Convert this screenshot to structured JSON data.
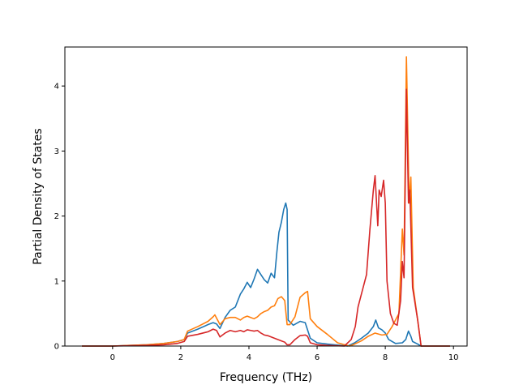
{
  "chart_data": {
    "type": "line",
    "title": "",
    "xlabel": "Frequency (THz)",
    "ylabel": "Partial Density of States",
    "xlim": [
      -1.4,
      10.4
    ],
    "ylim": [
      0,
      4.6
    ],
    "xticks": [
      0,
      2,
      4,
      6,
      8,
      10
    ],
    "yticks": [
      0,
      1,
      2,
      3,
      4
    ],
    "grid": false,
    "legend": "none",
    "series": [
      {
        "color": "#1f77b4",
        "points": [
          [
            -0.9,
            0
          ],
          [
            0,
            0
          ],
          [
            0.5,
            0.01
          ],
          [
            1.0,
            0.02
          ],
          [
            1.5,
            0.04
          ],
          [
            1.9,
            0.07
          ],
          [
            2.1,
            0.1
          ],
          [
            2.2,
            0.2
          ],
          [
            2.5,
            0.26
          ],
          [
            2.8,
            0.33
          ],
          [
            2.95,
            0.36
          ],
          [
            3.05,
            0.34
          ],
          [
            3.15,
            0.27
          ],
          [
            3.3,
            0.44
          ],
          [
            3.45,
            0.55
          ],
          [
            3.6,
            0.6
          ],
          [
            3.75,
            0.8
          ],
          [
            3.85,
            0.88
          ],
          [
            3.95,
            0.98
          ],
          [
            4.05,
            0.9
          ],
          [
            4.15,
            1.03
          ],
          [
            4.25,
            1.18
          ],
          [
            4.35,
            1.1
          ],
          [
            4.45,
            1.02
          ],
          [
            4.55,
            0.97
          ],
          [
            4.65,
            1.12
          ],
          [
            4.75,
            1.05
          ],
          [
            4.82,
            1.45
          ],
          [
            4.88,
            1.75
          ],
          [
            4.95,
            1.9
          ],
          [
            5.02,
            2.1
          ],
          [
            5.08,
            2.2
          ],
          [
            5.12,
            2.1
          ],
          [
            5.15,
            0.4
          ],
          [
            5.3,
            0.32
          ],
          [
            5.5,
            0.38
          ],
          [
            5.65,
            0.36
          ],
          [
            5.8,
            0.12
          ],
          [
            6.0,
            0.05
          ],
          [
            6.3,
            0.03
          ],
          [
            6.5,
            0.02
          ],
          [
            6.9,
            0
          ],
          [
            7.1,
            0.05
          ],
          [
            7.3,
            0.12
          ],
          [
            7.5,
            0.2
          ],
          [
            7.65,
            0.3
          ],
          [
            7.72,
            0.4
          ],
          [
            7.8,
            0.28
          ],
          [
            7.9,
            0.25
          ],
          [
            8.0,
            0.2
          ],
          [
            8.1,
            0.1
          ],
          [
            8.3,
            0.04
          ],
          [
            8.5,
            0.05
          ],
          [
            8.6,
            0.1
          ],
          [
            8.68,
            0.23
          ],
          [
            8.75,
            0.15
          ],
          [
            8.8,
            0.07
          ],
          [
            8.95,
            0.03
          ],
          [
            9.05,
            0
          ],
          [
            9.9,
            0
          ]
        ]
      },
      {
        "color": "#ff7f0e",
        "points": [
          [
            -0.9,
            0
          ],
          [
            0,
            0
          ],
          [
            0.5,
            0.01
          ],
          [
            1.0,
            0.02
          ],
          [
            1.5,
            0.04
          ],
          [
            1.9,
            0.07
          ],
          [
            2.1,
            0.1
          ],
          [
            2.2,
            0.23
          ],
          [
            2.5,
            0.3
          ],
          [
            2.8,
            0.38
          ],
          [
            2.95,
            0.45
          ],
          [
            3.0,
            0.48
          ],
          [
            3.15,
            0.33
          ],
          [
            3.3,
            0.42
          ],
          [
            3.45,
            0.44
          ],
          [
            3.6,
            0.44
          ],
          [
            3.75,
            0.4
          ],
          [
            3.85,
            0.44
          ],
          [
            3.95,
            0.46
          ],
          [
            4.05,
            0.44
          ],
          [
            4.15,
            0.42
          ],
          [
            4.25,
            0.45
          ],
          [
            4.35,
            0.5
          ],
          [
            4.45,
            0.53
          ],
          [
            4.55,
            0.55
          ],
          [
            4.65,
            0.6
          ],
          [
            4.75,
            0.62
          ],
          [
            4.85,
            0.73
          ],
          [
            4.95,
            0.76
          ],
          [
            5.05,
            0.7
          ],
          [
            5.12,
            0.33
          ],
          [
            5.2,
            0.33
          ],
          [
            5.35,
            0.45
          ],
          [
            5.5,
            0.75
          ],
          [
            5.65,
            0.82
          ],
          [
            5.72,
            0.84
          ],
          [
            5.8,
            0.42
          ],
          [
            6.0,
            0.3
          ],
          [
            6.3,
            0.18
          ],
          [
            6.6,
            0.05
          ],
          [
            6.95,
            0
          ],
          [
            7.1,
            0.03
          ],
          [
            7.3,
            0.08
          ],
          [
            7.5,
            0.15
          ],
          [
            7.7,
            0.2
          ],
          [
            7.9,
            0.17
          ],
          [
            8.05,
            0.18
          ],
          [
            8.2,
            0.3
          ],
          [
            8.4,
            0.5
          ],
          [
            8.5,
            1.8
          ],
          [
            8.55,
            1.4
          ],
          [
            8.62,
            4.45
          ],
          [
            8.7,
            2.2
          ],
          [
            8.75,
            2.6
          ],
          [
            8.82,
            0.9
          ],
          [
            8.95,
            0.4
          ],
          [
            9.05,
            0
          ],
          [
            9.9,
            0
          ]
        ]
      },
      {
        "color": "#d62728",
        "points": [
          [
            -0.9,
            0
          ],
          [
            0,
            0
          ],
          [
            0.5,
            0.005
          ],
          [
            1.0,
            0.01
          ],
          [
            1.5,
            0.02
          ],
          [
            1.9,
            0.04
          ],
          [
            2.1,
            0.07
          ],
          [
            2.2,
            0.15
          ],
          [
            2.5,
            0.18
          ],
          [
            2.8,
            0.22
          ],
          [
            2.95,
            0.26
          ],
          [
            3.05,
            0.24
          ],
          [
            3.15,
            0.14
          ],
          [
            3.3,
            0.2
          ],
          [
            3.45,
            0.24
          ],
          [
            3.6,
            0.22
          ],
          [
            3.75,
            0.24
          ],
          [
            3.85,
            0.22
          ],
          [
            3.95,
            0.25
          ],
          [
            4.05,
            0.24
          ],
          [
            4.15,
            0.23
          ],
          [
            4.25,
            0.24
          ],
          [
            4.35,
            0.2
          ],
          [
            4.45,
            0.17
          ],
          [
            4.55,
            0.16
          ],
          [
            4.65,
            0.14
          ],
          [
            4.75,
            0.12
          ],
          [
            4.85,
            0.1
          ],
          [
            4.95,
            0.08
          ],
          [
            5.05,
            0.06
          ],
          [
            5.12,
            0.02
          ],
          [
            5.2,
            0.02
          ],
          [
            5.35,
            0.1
          ],
          [
            5.5,
            0.16
          ],
          [
            5.65,
            0.17
          ],
          [
            5.72,
            0.15
          ],
          [
            5.8,
            0.05
          ],
          [
            6.0,
            0.02
          ],
          [
            6.3,
            0.01
          ],
          [
            6.8,
            0
          ],
          [
            7.0,
            0.1
          ],
          [
            7.12,
            0.3
          ],
          [
            7.2,
            0.6
          ],
          [
            7.3,
            0.8
          ],
          [
            7.45,
            1.1
          ],
          [
            7.55,
            1.8
          ],
          [
            7.65,
            2.4
          ],
          [
            7.7,
            2.62
          ],
          [
            7.78,
            1.85
          ],
          [
            7.82,
            2.4
          ],
          [
            7.88,
            2.3
          ],
          [
            7.95,
            2.55
          ],
          [
            8.0,
            2.2
          ],
          [
            8.05,
            1.0
          ],
          [
            8.15,
            0.5
          ],
          [
            8.25,
            0.35
          ],
          [
            8.35,
            0.32
          ],
          [
            8.45,
            0.7
          ],
          [
            8.5,
            1.3
          ],
          [
            8.55,
            1.05
          ],
          [
            8.62,
            3.95
          ],
          [
            8.68,
            2.2
          ],
          [
            8.72,
            2.4
          ],
          [
            8.8,
            0.9
          ],
          [
            8.95,
            0.4
          ],
          [
            9.05,
            0
          ],
          [
            9.9,
            0
          ]
        ]
      }
    ]
  }
}
